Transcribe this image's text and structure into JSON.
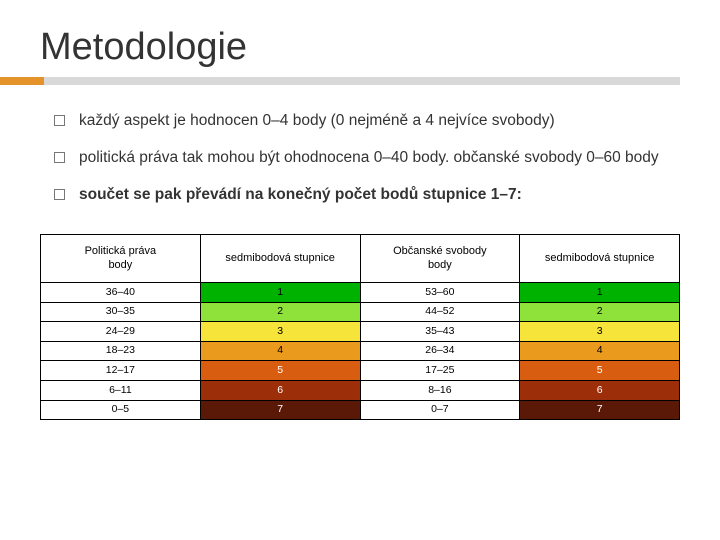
{
  "title": "Metodologie",
  "bullets": [
    {
      "text": "každý aspekt je hodnocen 0–4 body (0 nejméně a 4 nejvíce svobody)",
      "bold": false
    },
    {
      "text": "politická práva tak mohou být ohodnocena 0–40 body. občanské svobody 0–60 body",
      "bold": false
    },
    {
      "text": "součet se pak převádí na konečný počet bodů stupnice 1–7:",
      "bold": true
    }
  ],
  "table": {
    "headers": [
      "Politická práva\nbody",
      "sedmibodová stupnice",
      "Občanské svobody\nbody",
      "sedmibodová stupnice"
    ],
    "rows": [
      {
        "c0": "36–40",
        "c1": "1",
        "c2": "53–60",
        "c3": "1",
        "bg_odd": "#00b200",
        "bg_even": "#00b200",
        "odd_white": false
      },
      {
        "c0": "30–35",
        "c1": "2",
        "c2": "44–52",
        "c3": "2",
        "bg_odd": "#8fe23a",
        "bg_even": "#8fe23a",
        "odd_white": false
      },
      {
        "c0": "24–29",
        "c1": "3",
        "c2": "35–43",
        "c3": "3",
        "bg_odd": "#f6e43a",
        "bg_even": "#f6e43a",
        "odd_white": false
      },
      {
        "c0": "18–23",
        "c1": "4",
        "c2": "26–34",
        "c3": "4",
        "bg_odd": "#ea9a1c",
        "bg_even": "#ea9a1c",
        "odd_white": false
      },
      {
        "c0": "12–17",
        "c1": "5",
        "c2": "17–25",
        "c3": "5",
        "bg_odd": "#d85d10",
        "bg_even": "#d85d10",
        "odd_white": true
      },
      {
        "c0": "6–11",
        "c1": "6",
        "c2": "8–16",
        "c3": "6",
        "bg_odd": "#9c2f0a",
        "bg_even": "#9c2f0a",
        "odd_white": true
      },
      {
        "c0": "0–5",
        "c1": "7",
        "c2": "0–7",
        "c3": "7",
        "bg_odd": "#5a1806",
        "bg_even": "#5a1806",
        "odd_white": true
      }
    ],
    "even_col_bg": "#ffffff"
  },
  "colors": {
    "accent": "#e4932b",
    "underline": "#d9d9d9"
  }
}
